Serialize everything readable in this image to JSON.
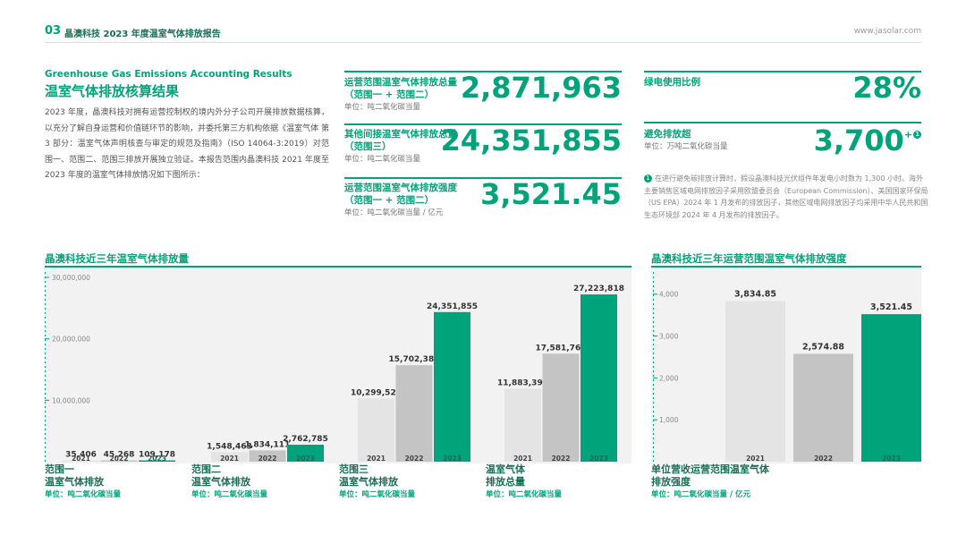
{
  "header": {
    "page_number": "03",
    "report_title": "晶澳科技 2023 年度温室气体排放报告",
    "website": "www.jasolar.com"
  },
  "intro": {
    "title_en": "Greenhouse Gas Emissions Accounting Results",
    "title_cn": "温室气体排放核算结果",
    "paragraph": "2023 年度，晶澳科技对拥有运营控制权的境内外分子公司开展排放数据核算，以充分了解自身运营和价值链环节的影响，并委托第三方机构依据《温室气体 第 3 部分：温室气体声明核查与审定的规范及指南》（ISO 14064-3:2019）对范围一、范围二、范围三排放开展独立验证。本报告范围内晶澳科技 2021 年度至 2023 年度的温室气体排放情况如下图所示："
  },
  "metrics": [
    {
      "label_line1": "运营范围温室气体排放总量",
      "label_line2": "（范围一 + 范围二）",
      "unit": "单位：吨二氧化碳当量",
      "value": "2,871,963"
    },
    {
      "label_line1": "其他间接温室气体排放总量",
      "label_line2": "（范围三）",
      "unit": "单位：吨二氧化碳当量",
      "value": "24,351,855"
    },
    {
      "label_line1": "运营范围温室气体排放强度",
      "label_line2": "（范围一 + 范围二）",
      "unit": "单位：吨二氧化碳当量 / 亿元",
      "value": "3,521.45"
    },
    {
      "label_line1": "绿电使用比例",
      "label_line2": "",
      "unit": "",
      "value": "28%"
    },
    {
      "label_line1": "避免排放超",
      "label_line2": "",
      "unit": "单位：万吨二氧化碳当量",
      "value": "3,700",
      "suffix": "+",
      "footnote_mark": "1"
    }
  ],
  "footnote": {
    "mark": "1",
    "text": "在进行避免碳排放计算时，假设晶澳科技光伏组件年发电小时数为 1,300 小时。海外主要销售区域电网排放因子采用欧盟委员会（European Commission）、美国国家环保局（US EPA）2024 年 1 月发布的排放因子，其他区域电网排放因子均采用中华人民共和国生态环境部 2024 年 4 月发布的排放因子。"
  },
  "colors": {
    "accent": "#00a37a",
    "dark_accent": "#1a6d55",
    "bar_2021": "#e4e4e4",
    "bar_2022": "#c4c4c4",
    "bar_2023": "#00a37a"
  },
  "chart_data": [
    {
      "type": "bar",
      "title": "晶澳科技近三年温室气体排放量",
      "categories": [
        "2021",
        "2022",
        "2023"
      ],
      "ylim": [
        0,
        30000000
      ],
      "yticks": [
        "10,000,000",
        "20,000,000",
        "30,000,000"
      ],
      "ytick_values": [
        10000000,
        20000000,
        30000000
      ],
      "groups": [
        {
          "label_line1": "范围一",
          "label_line2": "温室气体排放",
          "unit": "单位：吨二氧化碳当量",
          "values": [
            35406,
            45268,
            109178
          ],
          "value_labels": [
            "35,406",
            "45,268",
            "109,178"
          ]
        },
        {
          "label_line1": "范围二",
          "label_line2": "温室气体排放",
          "unit": "单位：吨二氧化碳当量",
          "values": [
            1548463,
            1834111,
            2762785
          ],
          "value_labels": [
            "1,548,463",
            "1,834,111",
            "2,762,785"
          ]
        },
        {
          "label_line1": "范围三",
          "label_line2": "温室气体排放",
          "unit": "单位：吨二氧化碳当量",
          "values": [
            10299525,
            15702382,
            24351855
          ],
          "value_labels": [
            "10,299,525",
            "15,702,382",
            "24,351,855"
          ]
        },
        {
          "label_line1": "温室气体",
          "label_line2": "排放总量",
          "unit": "单位：吨二氧化碳当量",
          "values": [
            11883394,
            17581761,
            27223818
          ],
          "value_labels": [
            "11,883,394",
            "17,581,761",
            "27,223,818"
          ]
        }
      ]
    },
    {
      "type": "bar",
      "title": "晶澳科技近三年运营范围温室气体排放强度",
      "categories": [
        "2021",
        "2022",
        "2023"
      ],
      "ylim": [
        0,
        4400
      ],
      "yticks": [
        "1,000",
        "2,000",
        "3,000",
        "4,000"
      ],
      "ytick_values": [
        1000,
        2000,
        3000,
        4000
      ],
      "values": [
        3834.85,
        2574.88,
        3521.45
      ],
      "value_labels": [
        "3,834.85",
        "2,574.88",
        "3,521.45"
      ],
      "label_line1": "单位营收运营范围温室气体",
      "label_line2": "排放强度",
      "unit": "单位：吨二氧化碳当量 / 亿元"
    }
  ]
}
